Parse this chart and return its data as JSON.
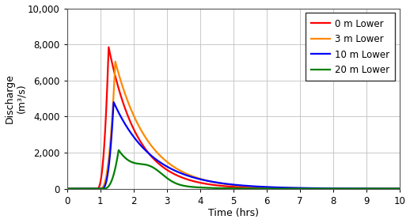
{
  "title": "",
  "xlabel": "Time (hrs)",
  "ylabel": "Discharge\n(m³/s)",
  "xlim": [
    0,
    10
  ],
  "ylim": [
    0,
    10000
  ],
  "xticks": [
    0,
    1,
    2,
    3,
    4,
    5,
    6,
    7,
    8,
    9,
    10
  ],
  "yticks": [
    0,
    2000,
    4000,
    6000,
    8000,
    10000
  ],
  "ytick_labels": [
    "0",
    "2,000",
    "4,000",
    "6,000",
    "8,000",
    "10,000"
  ],
  "series": [
    {
      "label": "0 m Lower",
      "color": "#ff0000",
      "peak_time": 1.25,
      "peak_value": 7850,
      "rise_start": 0.9,
      "decay_rate": 1.15
    },
    {
      "label": "3 m Lower",
      "color": "#ff8800",
      "peak_time": 1.45,
      "peak_value": 7050,
      "rise_start": 1.0,
      "decay_rate": 1.0
    },
    {
      "label": "10 m Lower",
      "color": "#0000ff",
      "peak_time": 1.4,
      "peak_value": 4800,
      "rise_start": 1.05,
      "decay_rate": 0.85
    },
    {
      "label": "20 m Lower",
      "color": "#008000",
      "peak_time": 1.55,
      "peak_value": 2100,
      "rise_start": 1.1,
      "decay_rate": 1.4,
      "secondary_peak_time": 2.5,
      "secondary_peak_value": 700
    }
  ],
  "background_color": "#ffffff",
  "grid_color": "#c0c0c0",
  "legend_fontsize": 8.5,
  "axis_fontsize": 9,
  "tick_fontsize": 8.5
}
